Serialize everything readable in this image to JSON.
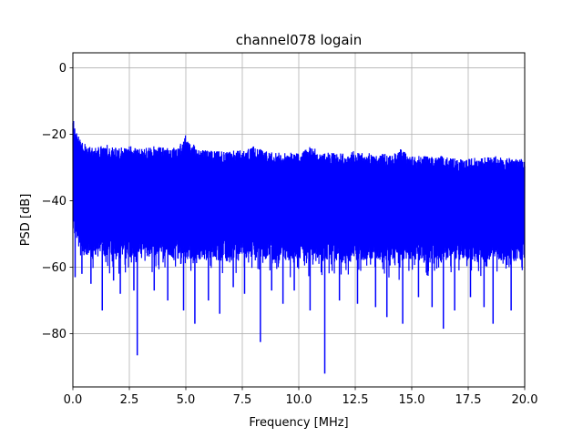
{
  "chart_data": {
    "type": "line",
    "title": "channel078 logain",
    "xlabel": "Frequency [MHz]",
    "ylabel": "PSD [dB]",
    "xlim": [
      0,
      20
    ],
    "ylim": [
      -96,
      4.5
    ],
    "x_ticks": [
      "0.0",
      "2.5",
      "5.0",
      "7.5",
      "10.0",
      "12.5",
      "15.0",
      "17.5",
      "20.0"
    ],
    "y_ticks": [
      "0",
      "−20",
      "−40",
      "−60",
      "−80"
    ],
    "grid": true,
    "line_color": "#0000ff",
    "series": [
      {
        "upper_envelope": {
          "x": [
            0.0,
            0.1,
            0.3,
            0.6,
            1.0,
            1.5,
            2.0,
            2.5,
            3.0,
            3.5,
            4.0,
            4.5,
            4.9,
            5.0,
            5.2,
            5.5,
            6.0,
            7.0,
            7.5,
            8.0,
            8.5,
            9.0,
            10.0,
            10.5,
            11.0,
            12.0,
            12.5,
            13.0,
            14.0,
            14.5,
            15.0,
            16.0,
            16.5,
            17.0,
            18.0,
            18.5,
            19.0,
            20.0
          ],
          "y": [
            -14,
            -18,
            -21,
            -23,
            -24,
            -23,
            -24,
            -23.5,
            -24,
            -23.5,
            -24,
            -24,
            -22,
            -20,
            -22,
            -24,
            -25,
            -25,
            -24.5,
            -23.5,
            -25,
            -25.5,
            -25.5,
            -23.5,
            -25.5,
            -25.5,
            -25,
            -25.5,
            -26,
            -24.5,
            -26.5,
            -26.5,
            -26.5,
            -27.5,
            -27,
            -26,
            -27,
            -27.5
          ]
        },
        "lower_envelope": {
          "x": [
            0.0,
            0.5,
            1.0,
            2.0,
            3.0,
            4.0,
            5.0,
            6.0,
            7.0,
            8.0,
            9.0,
            10.0,
            11.0,
            12.0,
            13.0,
            14.0,
            15.0,
            16.0,
            17.0,
            18.0,
            19.0,
            20.0
          ],
          "y": [
            -50,
            -56,
            -57,
            -57,
            -57,
            -57,
            -58,
            -58,
            -58,
            -57,
            -58,
            -58,
            -58,
            -58,
            -58,
            -58,
            -58,
            -58,
            -58,
            -58,
            -58,
            -58
          ]
        },
        "dips": [
          {
            "x": 0.1,
            "y": -63
          },
          {
            "x": 0.4,
            "y": -62
          },
          {
            "x": 0.8,
            "y": -65
          },
          {
            "x": 1.3,
            "y": -73
          },
          {
            "x": 1.8,
            "y": -64
          },
          {
            "x": 2.1,
            "y": -68
          },
          {
            "x": 2.7,
            "y": -67
          },
          {
            "x": 2.85,
            "y": -86.5
          },
          {
            "x": 3.6,
            "y": -67
          },
          {
            "x": 4.2,
            "y": -70
          },
          {
            "x": 4.9,
            "y": -73
          },
          {
            "x": 5.4,
            "y": -77
          },
          {
            "x": 6.0,
            "y": -70
          },
          {
            "x": 6.5,
            "y": -74
          },
          {
            "x": 7.1,
            "y": -66
          },
          {
            "x": 7.6,
            "y": -68
          },
          {
            "x": 8.3,
            "y": -82.5
          },
          {
            "x": 8.8,
            "y": -67
          },
          {
            "x": 9.3,
            "y": -71
          },
          {
            "x": 9.8,
            "y": -67
          },
          {
            "x": 10.5,
            "y": -73
          },
          {
            "x": 11.15,
            "y": -92
          },
          {
            "x": 11.8,
            "y": -70
          },
          {
            "x": 12.6,
            "y": -71
          },
          {
            "x": 13.4,
            "y": -72
          },
          {
            "x": 13.9,
            "y": -75
          },
          {
            "x": 14.6,
            "y": -77
          },
          {
            "x": 15.3,
            "y": -69
          },
          {
            "x": 15.9,
            "y": -72
          },
          {
            "x": 16.4,
            "y": -78.5
          },
          {
            "x": 16.9,
            "y": -73
          },
          {
            "x": 17.6,
            "y": -69
          },
          {
            "x": 18.2,
            "y": -72
          },
          {
            "x": 18.6,
            "y": -77
          },
          {
            "x": 19.4,
            "y": -73
          }
        ]
      }
    ]
  }
}
